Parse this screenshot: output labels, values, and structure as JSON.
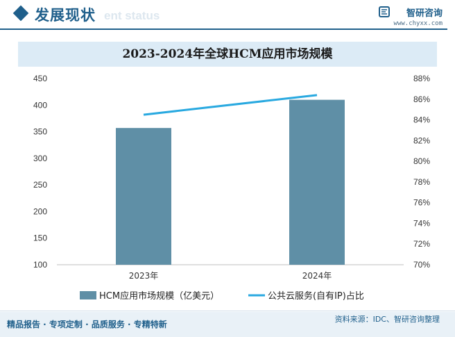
{
  "header": {
    "title": "发展现状",
    "ghost_text": "ent status"
  },
  "brand": {
    "name": "智研咨询",
    "url": "www.chyxx.com",
    "logo_icon": "chyxx-logo-icon",
    "color": "#1f5f8b"
  },
  "footer": {
    "tagline": "精品报告 · 专项定制 · 品质服务 · 专精特新",
    "source": "资料来源：IDC、智研咨询整理"
  },
  "colors": {
    "bar": "#5f8fa6",
    "line": "#29a9e0",
    "accent": "#1f5f8b"
  },
  "chart_data": {
    "type": "bar",
    "title": "2023-2024年全球HCM应用市场规模",
    "categories": [
      "2023年",
      "2024年"
    ],
    "series": [
      {
        "name": "HCM应用市场规模（亿美元）",
        "type": "bar",
        "axis": "left",
        "values": [
          357,
          410
        ]
      },
      {
        "name": "公共云服务(自有IP)占比",
        "type": "line",
        "axis": "right",
        "values": [
          84.5,
          86.4
        ]
      }
    ],
    "y_left": {
      "min": 100,
      "max": 450,
      "step": 50,
      "ticks": [
        "100",
        "150",
        "200",
        "250",
        "300",
        "350",
        "400",
        "450"
      ]
    },
    "y_right": {
      "min": 70,
      "max": 88,
      "step": 2,
      "ticks": [
        "70%",
        "72%",
        "74%",
        "76%",
        "78%",
        "80%",
        "82%",
        "84%",
        "86%",
        "88%"
      ]
    },
    "grid": false,
    "legend_position": "bottom"
  }
}
